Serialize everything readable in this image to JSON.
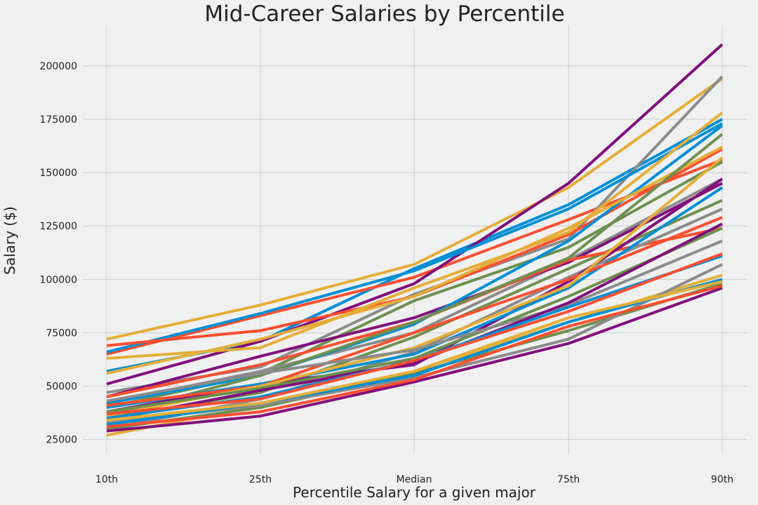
{
  "chart_data": {
    "type": "line",
    "title": "Mid-Career Salaries by Percentile",
    "xlabel": "Percentile Salary for a given major",
    "ylabel": "Salary ($)",
    "categories": [
      "10th",
      "25th",
      "Median",
      "75th",
      "90th"
    ],
    "ylim": [
      18000,
      219000
    ],
    "yticks": [
      25000,
      50000,
      75000,
      100000,
      125000,
      150000,
      175000,
      200000
    ],
    "grid": true,
    "legend": "none",
    "palette": [
      "#008fd5",
      "#fc4f30",
      "#e5ae38",
      "#6d904f",
      "#8b8b8b",
      "#810f7c"
    ],
    "series": [
      {
        "values": [
          57000,
          71000,
          105000,
          135000,
          175000
        ]
      },
      {
        "values": [
          65000,
          83000,
          101000,
          128000,
          156000
        ]
      },
      {
        "values": [
          72000,
          88000,
          107000,
          143000,
          194000
        ]
      },
      {
        "values": [
          35000,
          47000,
          73000,
          105000,
          137000
        ]
      },
      {
        "values": [
          47000,
          59000,
          93000,
          119000,
          195000
        ]
      },
      {
        "values": [
          51000,
          71000,
          98000,
          145000,
          210000
        ]
      },
      {
        "values": [
          66000,
          84000,
          104000,
          133000,
          173000
        ]
      },
      {
        "values": [
          69000,
          76000,
          92000,
          121000,
          161000
        ]
      },
      {
        "values": [
          63000,
          68000,
          96000,
          122000,
          178000
        ]
      },
      {
        "values": [
          40000,
          56000,
          90000,
          115000,
          155000
        ]
      },
      {
        "values": [
          42000,
          57000,
          75000,
          109000,
          147000
        ]
      },
      {
        "values": [
          45000,
          64000,
          82000,
          108000,
          145000
        ]
      },
      {
        "values": [
          42000,
          55000,
          79000,
          118000,
          172000
        ]
      },
      {
        "values": [
          45000,
          60000,
          80000,
          109000,
          124000
        ]
      },
      {
        "values": [
          56000,
          72000,
          92000,
          124000,
          162000
        ]
      },
      {
        "values": [
          36000,
          55000,
          80000,
          110000,
          168000
        ]
      },
      {
        "values": [
          30000,
          44000,
          66000,
          101000,
          133000
        ]
      },
      {
        "values": [
          38000,
          51000,
          60000,
          99000,
          147000
        ]
      },
      {
        "values": [
          40000,
          51000,
          65000,
          96000,
          143000
        ]
      },
      {
        "values": [
          41000,
          50000,
          75000,
          100000,
          129000
        ]
      },
      {
        "values": [
          36000,
          50000,
          68000,
          97000,
          157000
        ]
      },
      {
        "values": [
          38000,
          49000,
          63000,
          92000,
          124000
        ]
      },
      {
        "values": [
          43000,
          56000,
          67000,
          88000,
          118000
        ]
      },
      {
        "values": [
          34000,
          48000,
          61000,
          89000,
          126000
        ]
      },
      {
        "values": [
          35000,
          45000,
          62000,
          87000,
          111000
        ]
      },
      {
        "values": [
          37000,
          44000,
          62000,
          85000,
          112000
        ]
      },
      {
        "values": [
          27000,
          41000,
          57000,
          80000,
          102000
        ]
      },
      {
        "values": [
          30000,
          40000,
          56000,
          76000,
          98000
        ]
      },
      {
        "values": [
          33000,
          41000,
          54000,
          72000,
          107000
        ]
      },
      {
        "values": [
          29000,
          36000,
          52000,
          70000,
          96000
        ]
      },
      {
        "values": [
          32000,
          42000,
          55000,
          80000,
          100000
        ]
      },
      {
        "values": [
          31000,
          38000,
          53000,
          78000,
          97000
        ]
      },
      {
        "values": [
          34000,
          42000,
          57000,
          82000,
          99000
        ]
      }
    ]
  }
}
